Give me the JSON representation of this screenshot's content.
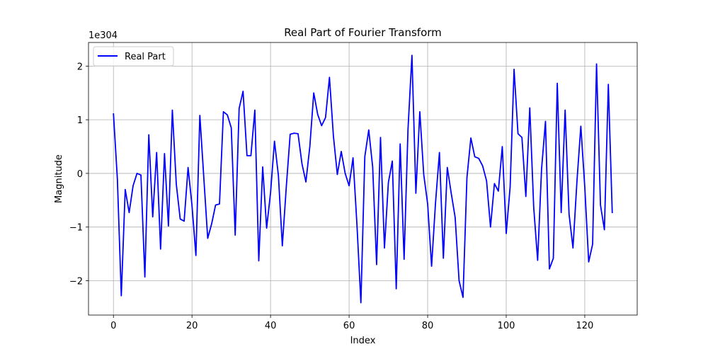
{
  "chart_data": {
    "type": "line",
    "title": "Real Part of Fourier Transform",
    "xlabel": "Index",
    "ylabel": "Magnitude",
    "y_offset_label": "1e304",
    "xlim": [
      -6.35,
      133.35
    ],
    "ylim": [
      -2.64,
      2.44
    ],
    "x_ticks": [
      0,
      20,
      40,
      60,
      80,
      100,
      120
    ],
    "y_ticks": [
      -2,
      -1,
      0,
      1,
      2
    ],
    "y_tick_labels": [
      "−2",
      "−1",
      "0",
      "1",
      "2"
    ],
    "grid": true,
    "legend_position": "top-left",
    "series": [
      {
        "name": "Real Part",
        "color": "#0000ff",
        "x": [
          0,
          1,
          2,
          3,
          4,
          5,
          6,
          7,
          8,
          9,
          10,
          11,
          12,
          13,
          14,
          15,
          16,
          17,
          18,
          19,
          20,
          21,
          22,
          23,
          24,
          25,
          26,
          27,
          28,
          29,
          30,
          31,
          32,
          33,
          34,
          35,
          36,
          37,
          38,
          39,
          40,
          41,
          42,
          43,
          44,
          45,
          46,
          47,
          48,
          49,
          50,
          51,
          52,
          53,
          54,
          55,
          56,
          57,
          58,
          59,
          60,
          61,
          62,
          63,
          64,
          65,
          66,
          67,
          68,
          69,
          70,
          71,
          72,
          73,
          74,
          75,
          76,
          77,
          78,
          79,
          80,
          81,
          82,
          83,
          84,
          85,
          86,
          87,
          88,
          89,
          90,
          91,
          92,
          93,
          94,
          95,
          96,
          97,
          98,
          99,
          100,
          101,
          102,
          103,
          104,
          105,
          106,
          107,
          108,
          109,
          110,
          111,
          112,
          113,
          114,
          115,
          116,
          117,
          118,
          119,
          120,
          121,
          122,
          123,
          124,
          125,
          126,
          127
        ],
        "values": [
          1.12,
          -0.1,
          -2.28,
          -0.3,
          -0.73,
          -0.23,
          0.0,
          -0.03,
          -1.93,
          0.72,
          -0.81,
          0.39,
          -1.41,
          0.37,
          -0.98,
          1.18,
          -0.2,
          -0.85,
          -0.89,
          0.11,
          -0.6,
          -1.53,
          1.08,
          -0.07,
          -1.21,
          -0.94,
          -0.59,
          -0.57,
          1.15,
          1.09,
          0.85,
          -1.15,
          1.21,
          1.53,
          0.33,
          0.33,
          1.18,
          -1.63,
          0.12,
          -1.02,
          -0.36,
          0.6,
          -0.04,
          -1.35,
          -0.26,
          0.73,
          0.75,
          0.74,
          0.18,
          -0.16,
          0.5,
          1.5,
          1.1,
          0.89,
          1.04,
          1.79,
          0.7,
          -0.02,
          0.41,
          0.0,
          -0.23,
          0.29,
          -0.96,
          -2.41,
          0.31,
          0.81,
          0.12,
          -1.7,
          0.67,
          -1.39,
          -0.17,
          0.23,
          -2.15,
          0.55,
          -1.6,
          0.83,
          2.2,
          -0.37,
          1.15,
          -0.02,
          -0.57,
          -1.73,
          -0.55,
          0.39,
          -1.58,
          0.11,
          -0.37,
          -0.82,
          -2.0,
          -2.31,
          -0.08,
          0.66,
          0.31,
          0.28,
          0.14,
          -0.14,
          -1.0,
          -0.19,
          -0.33,
          0.5,
          -1.12,
          -0.25,
          1.94,
          0.74,
          0.67,
          -0.43,
          1.22,
          -0.63,
          -1.62,
          0.08,
          0.97,
          -1.78,
          -1.58,
          1.68,
          -0.73,
          1.18,
          -0.76,
          -1.39,
          -0.16,
          0.88,
          -0.25,
          -1.65,
          -1.32,
          2.04,
          -0.59,
          -1.05,
          1.66,
          -0.74
        ]
      }
    ]
  }
}
